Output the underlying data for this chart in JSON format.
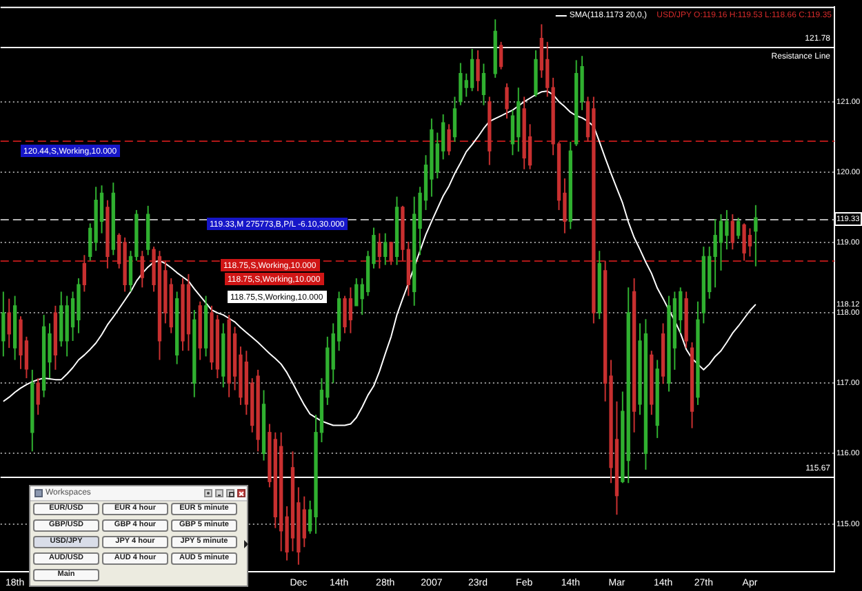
{
  "chart_data": [
    {
      "type": "candlestick",
      "title": "USD/JPY O:119.16 H:119.53 L:118.66 C:119.35",
      "categories": [
        null,
        null,
        "18th",
        null,
        null,
        null,
        null,
        null,
        null,
        null,
        null,
        null,
        null,
        null,
        null,
        null,
        null,
        null,
        null,
        null,
        null,
        null,
        null,
        null,
        null,
        null,
        null,
        null,
        null,
        null,
        null,
        null,
        null,
        null,
        null,
        null,
        null,
        null,
        null,
        null,
        null,
        null,
        null,
        null,
        null,
        null,
        null,
        null,
        null,
        null,
        null,
        "Dec",
        null,
        null,
        null,
        null,
        null,
        null,
        "14th",
        null,
        null,
        null,
        null,
        null,
        null,
        null,
        "28th",
        null,
        null,
        null,
        null,
        null,
        null,
        null,
        "2007",
        null,
        null,
        null,
        null,
        null,
        null,
        null,
        "23rd",
        null,
        null,
        null,
        null,
        null,
        null,
        null,
        "Feb",
        null,
        null,
        null,
        null,
        null,
        null,
        null,
        "14th",
        null,
        null,
        null,
        null,
        null,
        null,
        null,
        "Mar",
        null,
        null,
        null,
        null,
        null,
        null,
        null,
        "14th",
        null,
        null,
        null,
        null,
        null,
        null,
        "27th",
        null,
        null,
        null,
        null,
        null,
        null,
        null,
        "Apr",
        null
      ],
      "series": [
        {
          "ohlc": [
            [
              117.6,
              118.3,
              117.38,
              118.0
            ],
            [
              118.0,
              118.2,
              117.5,
              117.7
            ],
            [
              117.5,
              118.24,
              117.33,
              118.1
            ],
            [
              117.9,
              117.95,
              117.2,
              117.4
            ],
            [
              117.6,
              117.66,
              117.07,
              117.2
            ],
            [
              116.3,
              117.19,
              116.03,
              117.0
            ],
            [
              117.0,
              117.07,
              116.55,
              116.7
            ],
            [
              116.9,
              117.97,
              116.8,
              117.8
            ],
            [
              117.3,
              117.85,
              117.07,
              117.7
            ],
            [
              118.0,
              118.1,
              117.19,
              117.4
            ],
            [
              117.6,
              118.3,
              117.52,
              118.1
            ],
            [
              117.6,
              118.24,
              117.38,
              118.1
            ],
            [
              117.8,
              118.3,
              117.6,
              118.2
            ],
            [
              117.9,
              118.49,
              117.71,
              118.4
            ],
            [
              118.7,
              118.82,
              118.3,
              118.4
            ],
            [
              118.8,
              119.27,
              118.74,
              119.2
            ],
            [
              119.0,
              119.79,
              118.88,
              119.6
            ],
            [
              119.3,
              119.81,
              119.13,
              119.7
            ],
            [
              119.5,
              119.6,
              118.63,
              118.8
            ],
            [
              118.9,
              119.85,
              118.82,
              119.7
            ],
            [
              119.1,
              119.13,
              118.63,
              118.7
            ],
            [
              119.0,
              119.07,
              118.3,
              118.4
            ],
            [
              118.4,
              118.88,
              118.3,
              118.8
            ],
            [
              118.8,
              119.46,
              118.74,
              119.4
            ],
            [
              118.8,
              118.88,
              118.36,
              118.5
            ],
            [
              118.9,
              119.52,
              118.82,
              119.4
            ],
            [
              118.9,
              118.94,
              118.3,
              118.4
            ],
            [
              118.8,
              118.88,
              117.33,
              117.6
            ],
            [
              118.6,
              118.74,
              117.85,
              118.0
            ],
            [
              118.4,
              118.49,
              117.71,
              117.8
            ],
            [
              117.4,
              118.3,
              117.27,
              118.2
            ],
            [
              118.4,
              118.49,
              117.46,
              117.6
            ],
            [
              118.4,
              118.55,
              117.46,
              117.7
            ],
            [
              117.0,
              118.04,
              116.8,
              117.9
            ],
            [
              118.1,
              118.16,
              117.33,
              117.5
            ],
            [
              117.5,
              118.24,
              117.38,
              118.1
            ],
            [
              118.0,
              118.1,
              117.19,
              117.3
            ],
            [
              117.9,
              117.97,
              117.07,
              117.2
            ],
            [
              117.1,
              117.85,
              116.94,
              117.7
            ],
            [
              117.9,
              117.97,
              116.8,
              117.0
            ],
            [
              117.7,
              117.8,
              116.9,
              117.1
            ],
            [
              117.4,
              117.52,
              116.69,
              116.8
            ],
            [
              117.3,
              117.46,
              116.55,
              116.7
            ],
            [
              117.0,
              117.07,
              116.3,
              116.4
            ],
            [
              117.1,
              117.19,
              116.03,
              116.2
            ],
            [
              116.0,
              116.9,
              115.9,
              116.7
            ],
            [
              116.3,
              116.42,
              115.52,
              115.6
            ],
            [
              116.2,
              116.3,
              114.94,
              115.1
            ],
            [
              116.1,
              116.3,
              114.61,
              114.9
            ],
            [
              115.1,
              115.25,
              114.48,
              114.6
            ],
            [
              115.8,
              116.03,
              114.61,
              114.8
            ],
            [
              115.3,
              115.52,
              114.42,
              114.6
            ],
            [
              115.2,
              115.39,
              114.67,
              114.8
            ],
            [
              114.9,
              115.33,
              114.86,
              115.2
            ],
            [
              115.1,
              116.55,
              114.86,
              116.3
            ],
            [
              116.3,
              117.07,
              116.16,
              116.9
            ],
            [
              116.8,
              117.66,
              116.69,
              117.5
            ],
            [
              117.2,
              117.85,
              117.0,
              117.7
            ],
            [
              117.6,
              118.3,
              117.46,
              118.2
            ],
            [
              118.2,
              118.24,
              117.71,
              117.8
            ],
            [
              118.2,
              118.36,
              117.71,
              117.9
            ],
            [
              118.1,
              118.49,
              118.1,
              118.4
            ],
            [
              118.2,
              118.49,
              117.97,
              118.4
            ],
            [
              118.3,
              118.88,
              118.24,
              118.8
            ],
            [
              118.7,
              119.21,
              118.63,
              119.1
            ],
            [
              119.0,
              119.13,
              118.63,
              118.8
            ],
            [
              118.8,
              119.13,
              118.68,
              119.0
            ],
            [
              119.0,
              119.01,
              118.68,
              118.75
            ],
            [
              118.8,
              119.65,
              118.68,
              119.5
            ],
            [
              119.5,
              119.52,
              118.74,
              118.9
            ],
            [
              118.9,
              119.01,
              118.24,
              118.4
            ],
            [
              118.3,
              119.65,
              118.1,
              119.4
            ],
            [
              119.2,
              119.79,
              118.82,
              119.7
            ],
            [
              119.6,
              120.24,
              119.46,
              120.1
            ],
            [
              119.9,
              120.76,
              119.65,
              120.6
            ],
            [
              120.0,
              120.56,
              119.91,
              120.4
            ],
            [
              120.3,
              120.82,
              120.18,
              120.7
            ],
            [
              120.6,
              120.68,
              120.24,
              120.3
            ],
            [
              120.5,
              121.07,
              120.43,
              120.9
            ],
            [
              121.0,
              121.55,
              120.95,
              121.4
            ],
            [
              121.2,
              121.4,
              121.07,
              121.3
            ],
            [
              121.2,
              121.75,
              121.15,
              121.6
            ],
            [
              121.6,
              121.73,
              121.15,
              121.3
            ],
            [
              121.1,
              121.54,
              120.95,
              121.4
            ],
            [
              121.0,
              121.07,
              120.1,
              120.3
            ],
            [
              121.4,
              122.17,
              121.34,
              122.0
            ],
            [
              121.8,
              121.85,
              121.46,
              121.5
            ],
            [
              121.2,
              121.26,
              120.76,
              120.9
            ],
            [
              120.4,
              120.88,
              120.24,
              120.8
            ],
            [
              120.5,
              121.2,
              120.29,
              121.0
            ],
            [
              120.9,
              121.07,
              120.04,
              120.2
            ],
            [
              120.5,
              120.68,
              120.04,
              120.1
            ],
            [
              121.1,
              121.73,
              121.07,
              121.6
            ],
            [
              121.9,
              122.1,
              121.34,
              121.45
            ],
            [
              121.6,
              121.85,
              121.07,
              121.2
            ],
            [
              121.2,
              121.34,
              120.24,
              120.4
            ],
            [
              120.4,
              120.43,
              119.46,
              119.6
            ],
            [
              119.7,
              119.91,
              119.13,
              119.3
            ],
            [
              119.3,
              120.43,
              119.19,
              120.3
            ],
            [
              120.4,
              121.59,
              120.37,
              121.4
            ],
            [
              121.0,
              121.65,
              120.88,
              121.5
            ],
            [
              121.0,
              121.07,
              120.43,
              120.5
            ],
            [
              120.9,
              121.07,
              117.85,
              118.0
            ],
            [
              118.0,
              118.88,
              117.91,
              118.7
            ],
            [
              118.6,
              118.74,
              116.74,
              117.0
            ],
            [
              117.1,
              117.33,
              115.58,
              115.8
            ],
            [
              116.2,
              116.74,
              115.13,
              115.4
            ],
            [
              115.6,
              116.88,
              115.58,
              116.6
            ],
            [
              115.9,
              118.36,
              115.58,
              118.0
            ],
            [
              118.3,
              118.49,
              116.3,
              116.6
            ],
            [
              116.7,
              117.85,
              116.55,
              117.6
            ],
            [
              116.0,
              117.91,
              115.77,
              117.7
            ],
            [
              117.4,
              117.46,
              116.55,
              116.7
            ],
            [
              116.4,
              117.33,
              116.22,
              117.2
            ],
            [
              117.7,
              117.85,
              116.99,
              117.1
            ],
            [
              117.0,
              118.24,
              116.88,
              118.1
            ],
            [
              117.5,
              118.3,
              117.19,
              118.2
            ],
            [
              117.9,
              118.36,
              117.71,
              118.3
            ],
            [
              118.2,
              118.3,
              117.5,
              117.6
            ],
            [
              117.5,
              117.58,
              116.36,
              116.6
            ],
            [
              116.8,
              118.16,
              116.69,
              117.9
            ],
            [
              118.0,
              118.94,
              117.85,
              118.8
            ],
            [
              118.3,
              118.94,
              118.2,
              118.8
            ],
            [
              118.8,
              119.33,
              118.36,
              119.1
            ],
            [
              119.0,
              119.4,
              118.6,
              119.3
            ],
            [
              119.1,
              119.46,
              118.9,
              119.3
            ],
            [
              119.3,
              119.4,
              118.9,
              119.0
            ],
            [
              119.1,
              119.35,
              119.05,
              119.3
            ],
            [
              119.25,
              119.27,
              118.74,
              118.85
            ],
            [
              119.1,
              119.2,
              118.8,
              118.95
            ],
            [
              119.16,
              119.53,
              118.66,
              119.35
            ]
          ],
          "colors": [
            "#30b030",
            "#c83030",
            "#30b030",
            "#c83030",
            "#c83030",
            "#30b030",
            "#c83030",
            "#30b030",
            "#30b030",
            "#c83030",
            "#30b030",
            "#30b030",
            "#30b030",
            "#30b030",
            "#c83030",
            "#30b030",
            "#30b030",
            "#30b030",
            "#c83030",
            "#30b030",
            "#c83030",
            "#c83030",
            "#30b030",
            "#30b030",
            "#c83030",
            "#30b030",
            "#c83030",
            "#c83030",
            "#c83030",
            "#c83030",
            "#30b030",
            "#c83030",
            "#c83030",
            "#30b030",
            "#c83030",
            "#30b030",
            "#c83030",
            "#c83030",
            "#30b030",
            "#c83030",
            "#c83030",
            "#c83030",
            "#c83030",
            "#c83030",
            "#c83030",
            "#30b030",
            "#c83030",
            "#c83030",
            "#c83030",
            "#c83030",
            "#c83030",
            "#c83030",
            "#c83030",
            "#30b030",
            "#30b030",
            "#30b030",
            "#30b030",
            "#30b030",
            "#30b030",
            "#c83030",
            "#c83030",
            "#30b030",
            "#30b030",
            "#30b030",
            "#30b030",
            "#c83030",
            "#30b030",
            "#c83030",
            "#30b030",
            "#c83030",
            "#c83030",
            "#30b030",
            "#30b030",
            "#30b030",
            "#30b030",
            "#30b030",
            "#30b030",
            "#c83030",
            "#30b030",
            "#30b030",
            "#30b030",
            "#30b030",
            "#c83030",
            "#30b030",
            "#c83030",
            "#30b030",
            "#c83030",
            "#c83030",
            "#30b030",
            "#30b030",
            "#c83030",
            "#c83030",
            "#30b030",
            "#c83030",
            "#c83030",
            "#c83030",
            "#c83030",
            "#c83030",
            "#30b030",
            "#30b030",
            "#30b030",
            "#c83030",
            "#c83030",
            "#30b030",
            "#c83030",
            "#c83030",
            "#c83030",
            "#30b030",
            "#30b030",
            "#c83030",
            "#30b030",
            "#30b030",
            "#c83030",
            "#30b030",
            "#c83030",
            "#30b030",
            "#30b030",
            "#30b030",
            "#c83030",
            "#c83030",
            "#30b030",
            "#30b030",
            "#30b030",
            "#30b030",
            "#30b030",
            "#30b030",
            "#c83030",
            "#30b030",
            "#c83030",
            "#c83030",
            "#30b030"
          ]
        },
        {
          "type": "line",
          "name": "SMA(118.1173 20,0,)",
          "color": "#ffffff",
          "values": [
            116.74,
            116.8,
            116.87,
            116.93,
            116.98,
            117.02,
            117.05,
            117.07,
            117.06,
            117.05,
            117.05,
            117.13,
            117.22,
            117.33,
            117.4,
            117.48,
            117.57,
            117.69,
            117.83,
            117.94,
            118.06,
            118.18,
            118.3,
            118.45,
            118.56,
            118.65,
            118.72,
            118.74,
            118.7,
            118.64,
            118.57,
            118.51,
            118.45,
            118.34,
            118.24,
            118.14,
            118.04,
            118.0,
            117.97,
            117.92,
            117.87,
            117.79,
            117.72,
            117.65,
            117.58,
            117.5,
            117.42,
            117.35,
            117.27,
            117.15,
            117.0,
            116.84,
            116.69,
            116.56,
            116.51,
            116.46,
            116.43,
            116.4,
            116.4,
            116.4,
            116.42,
            116.51,
            116.66,
            116.83,
            116.96,
            117.17,
            117.42,
            117.66,
            117.97,
            118.2,
            118.42,
            118.65,
            118.88,
            119.11,
            119.3,
            119.48,
            119.66,
            119.8,
            119.98,
            120.13,
            120.29,
            120.39,
            120.5,
            120.62,
            120.72,
            120.76,
            120.8,
            120.84,
            120.88,
            120.94,
            121.0,
            121.05,
            121.1,
            121.14,
            121.15,
            121.1,
            121.0,
            120.93,
            120.85,
            120.8,
            120.77,
            120.72,
            120.65,
            120.43,
            120.2,
            119.98,
            119.77,
            119.56,
            119.29,
            119.07,
            118.9,
            118.72,
            118.56,
            118.35,
            118.2,
            118.04,
            117.89,
            117.71,
            117.48,
            117.35,
            117.27,
            117.19,
            117.27,
            117.38,
            117.46,
            117.58,
            117.71,
            117.81,
            117.92,
            118.03,
            118.12
          ]
        }
      ],
      "ylim": [
        114.32,
        122.35
      ],
      "yticks": [
        {
          "value": 115,
          "label": "115.00"
        },
        {
          "value": 116,
          "label": "116.00"
        },
        {
          "value": 117,
          "label": "117.00"
        },
        {
          "value": 118,
          "label": "118.00"
        },
        118.12,
        {
          "value": 119,
          "label": "119.00"
        },
        119.33,
        {
          "value": 120,
          "label": "120.00"
        },
        {
          "value": 121,
          "label": "121.00"
        }
      ],
      "grid": "y",
      "legend": "top right",
      "ref_lines": [
        {
          "axis": "y",
          "value": 121.78,
          "label": "Resistance Line",
          "color": "#ffffff",
          "line_style": "solid"
        },
        {
          "axis": "y",
          "value": 120.44,
          "label": "120.44,S,Working,10.000",
          "color": "#b01818",
          "line_style": "dashed"
        },
        {
          "axis": "y",
          "value": 119.33,
          "label": "119.33,M 275773,B,P/L -6.10,30.000",
          "color": "#b4b4b4",
          "line_style": "dashed"
        },
        {
          "axis": "y",
          "value": 118.75,
          "label": "118.75,S,Working,10.000",
          "color": "#b01818",
          "line_style": "dashed"
        },
        {
          "axis": "y",
          "value": 115.67,
          "label": "115.67",
          "color": "#ffffff",
          "line_style": "solid"
        }
      ],
      "annotations": [
        {
          "text": "121.78",
          "y": 121.78
        },
        {
          "text": "118.75,S,Working,10.000",
          "y": 118.75
        },
        "118.75,S,Working,10.000"
      ]
    },
    {
      "type": "other",
      "title": "Workspaces",
      "annotations": [
        "EUR/USD",
        "EUR 4 hour",
        "EUR 5 minute",
        "GBP/USD",
        "GBP 4 hour",
        "GBP 5 minute",
        "USD/JPY",
        "JPY 4 hour",
        "JPY 5 minute",
        "AUD/USD",
        "AUD 4 hour",
        "AUD 5 minute",
        "Main"
      ]
    }
  ]
}
